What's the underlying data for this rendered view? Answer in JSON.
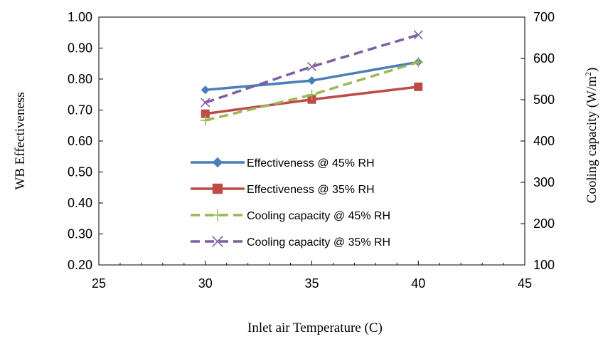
{
  "chart_data": {
    "type": "line",
    "xlabel": "Inlet air  Temperature (C)",
    "ylabel_left": "WB Effectiveness",
    "ylabel_right": "Cooling capacity (W/m",
    "ylabel_right_sup": "2",
    "ylabel_right_end": ")",
    "xlim": [
      25,
      45
    ],
    "ylim_left": [
      0.2,
      1.0
    ],
    "ylim_right": [
      100,
      700
    ],
    "x_ticks": [
      "25",
      "30",
      "35",
      "40",
      "45"
    ],
    "y_left_ticks": [
      "0.20",
      "0.30",
      "0.40",
      "0.50",
      "0.60",
      "0.70",
      "0.80",
      "0.90",
      "1.00"
    ],
    "y_right_ticks": [
      "100",
      "200",
      "300",
      "400",
      "500",
      "600",
      "700"
    ],
    "grid": false,
    "legend_position": "center",
    "series": [
      {
        "name": "Effectiveness  @ 45% RH",
        "axis": "left",
        "x": [
          30,
          35,
          40
        ],
        "values": [
          0.765,
          0.795,
          0.855
        ],
        "color": "#4a7ebb",
        "marker": "diamond",
        "dash": "solid"
      },
      {
        "name": "Effectiveness  @ 35% RH",
        "axis": "left",
        "x": [
          30,
          35,
          40
        ],
        "values": [
          0.688,
          0.734,
          0.775
        ],
        "color": "#be4b48",
        "marker": "square",
        "dash": "solid"
      },
      {
        "name": "Cooling capacity @ 45%  RH",
        "axis": "right",
        "x": [
          30,
          35,
          40
        ],
        "values": [
          450,
          512,
          591
        ],
        "color": "#98b954",
        "marker": "plus",
        "dash": "dashed"
      },
      {
        "name": "Cooling capacity @ 35% RH",
        "axis": "right",
        "x": [
          30,
          35,
          40
        ],
        "values": [
          493,
          580,
          657
        ],
        "color": "#7d60a0",
        "marker": "x",
        "dash": "dashed"
      }
    ]
  }
}
